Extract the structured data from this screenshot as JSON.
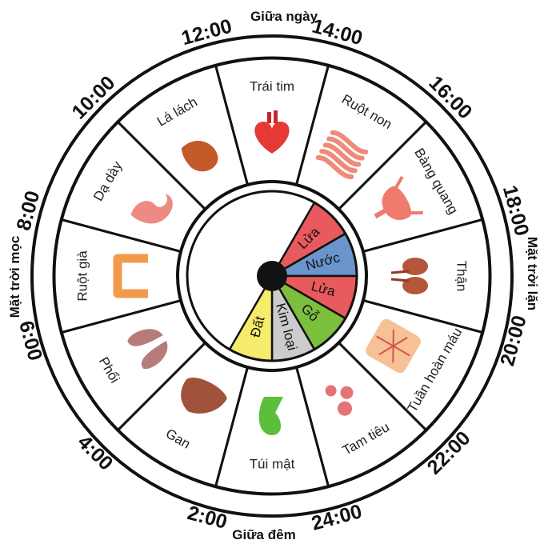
{
  "title": "",
  "captions": {
    "top": "Giữa ngày",
    "bottom": "Giữa đêm",
    "left": "Mặt trời mọc",
    "right": "Mặt trời lặn"
  },
  "segments": [
    {
      "organ": "Trái tim",
      "time": "12:00",
      "icon": "heart-icon",
      "color": "#e53935"
    },
    {
      "organ": "Ruột non",
      "time": "14:00",
      "icon": "small-intestine-icon",
      "color": "#ef8a7a"
    },
    {
      "organ": "Bàng quang",
      "time": "16:00",
      "icon": "bladder-icon",
      "color": "#ee7b6b"
    },
    {
      "organ": "Thận",
      "time": "18:00",
      "icon": "kidneys-icon",
      "color": "#b5563a"
    },
    {
      "organ": "Tuần hoàn máu",
      "time": "20:00",
      "icon": "circulation-icon",
      "color": "#f3b27a"
    },
    {
      "organ": "Tam tiêu",
      "time": "22:00",
      "icon": "triple-burner-icon",
      "color": "#e57373"
    },
    {
      "organ": "Túi mật",
      "time": "24:00",
      "icon": "gallbladder-icon",
      "color": "#5cbf3a"
    },
    {
      "organ": "Gan",
      "time": "2:00",
      "icon": "liver-icon",
      "color": "#a0523a"
    },
    {
      "organ": "Phổi",
      "time": "4:00",
      "icon": "lungs-icon",
      "color": "#b87b7b"
    },
    {
      "organ": "Ruột già",
      "time": "6:00",
      "icon": "large-intestine-icon",
      "color": "#f39a4a"
    },
    {
      "organ": "Dạ dày",
      "time": "8:00",
      "icon": "stomach-icon",
      "color": "#ee8a84"
    },
    {
      "organ": "Lá lách",
      "time": "10:00",
      "icon": "spleen-icon",
      "color": "#c45a2a"
    }
  ],
  "elements": [
    {
      "name": "Lửa",
      "color": "#e85a5e",
      "start": 2,
      "span": 2
    },
    {
      "name": "Nước",
      "color": "#6a95cc",
      "start": 4,
      "span": 2
    },
    {
      "name": "Lửa",
      "color": "#e85a5e",
      "start": 6,
      "span": 2
    },
    {
      "name": "Gỗ",
      "color": "#7cbf3d",
      "start": 8,
      "span": 2
    },
    {
      "name": "Kim loại",
      "color": "#cccccc",
      "start": 10,
      "span": 2
    },
    {
      "name": "Đất",
      "color": "#f6ec6c",
      "start": 12,
      "span": 2
    }
  ]
}
